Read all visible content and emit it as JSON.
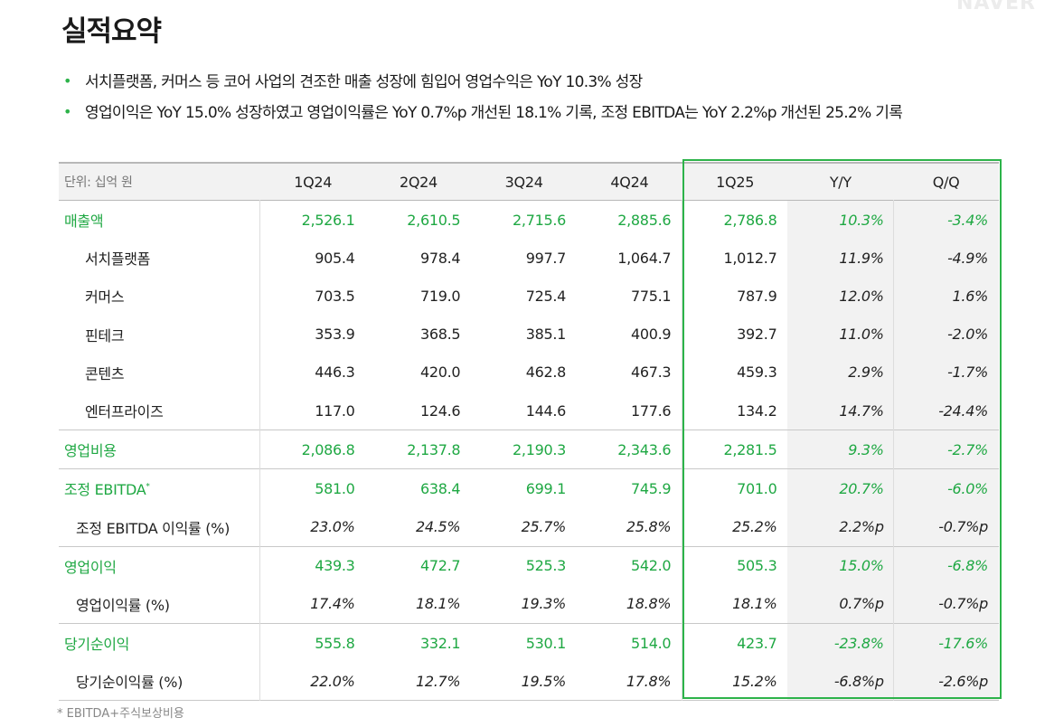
{
  "watermark": "NAVER",
  "title": "실적요약",
  "bullets": [
    "서치플랫폼, 커머스 등 코어 사업의 견조한 매출 성장에 힘입어 영업수익은 YoY 10.3% 성장",
    "영업이익은 YoY 15.0% 성장하였고 영업이익률은 YoY 0.7%p 개선된 18.1% 기록, 조정 EBITDA는 YoY 2.2%p 개선된 25.2% 기록"
  ],
  "table": {
    "unit": "단위: 십억 원",
    "headers": [
      "1Q24",
      "2Q24",
      "3Q24",
      "4Q24",
      "1Q25",
      "Y/Y",
      "Q/Q"
    ],
    "rows": [
      {
        "label": "매출액",
        "values": [
          "2,526.1",
          "2,610.5",
          "2,715.6",
          "2,885.6",
          "2,786.8",
          "10.3%",
          "-3.4%"
        ]
      },
      {
        "label": "서치플랫폼",
        "values": [
          "905.4",
          "978.4",
          "997.7",
          "1,064.7",
          "1,012.7",
          "11.9%",
          "-4.9%"
        ]
      },
      {
        "label": "커머스",
        "values": [
          "703.5",
          "719.0",
          "725.4",
          "775.1",
          "787.9",
          "12.0%",
          "1.6%"
        ]
      },
      {
        "label": "핀테크",
        "values": [
          "353.9",
          "368.5",
          "385.1",
          "400.9",
          "392.7",
          "11.0%",
          "-2.0%"
        ]
      },
      {
        "label": "콘텐츠",
        "values": [
          "446.3",
          "420.0",
          "462.8",
          "467.3",
          "459.3",
          "2.9%",
          "-1.7%"
        ]
      },
      {
        "label": "엔터프라이즈",
        "values": [
          "117.0",
          "124.6",
          "144.6",
          "177.6",
          "134.2",
          "14.7%",
          "-24.4%"
        ]
      },
      {
        "label": "영업비용",
        "values": [
          "2,086.8",
          "2,137.8",
          "2,190.3",
          "2,343.6",
          "2,281.5",
          "9.3%",
          "-2.7%"
        ]
      },
      {
        "label": "조정 EBITDA",
        "footnote_mark": "*",
        "values": [
          "581.0",
          "638.4",
          "699.1",
          "745.9",
          "701.0",
          "20.7%",
          "-6.0%"
        ]
      },
      {
        "label": "조정 EBITDA 이익률 (%)",
        "values": [
          "23.0%",
          "24.5%",
          "25.7%",
          "25.8%",
          "25.2%",
          "2.2%p",
          "-0.7%p"
        ]
      },
      {
        "label": "영업이익",
        "values": [
          "439.3",
          "472.7",
          "525.3",
          "542.0",
          "505.3",
          "15.0%",
          "-6.8%"
        ]
      },
      {
        "label": "영업이익률 (%)",
        "values": [
          "17.4%",
          "18.1%",
          "19.3%",
          "18.8%",
          "18.1%",
          "0.7%p",
          "-0.7%p"
        ]
      },
      {
        "label": "당기순이익",
        "values": [
          "555.8",
          "332.1",
          "530.1",
          "514.0",
          "423.7",
          "-23.8%",
          "-17.6%"
        ]
      },
      {
        "label": "당기순이익률 (%)",
        "values": [
          "22.0%",
          "12.7%",
          "19.5%",
          "17.8%",
          "15.2%",
          "-6.8%p",
          "-2.6%p"
        ]
      }
    ]
  },
  "footnote": "* EBITDA+주식보상비용",
  "colors": {
    "accent": "#2db34a",
    "accent_text": "#1fa843",
    "header_bg": "#f2f2f2"
  }
}
